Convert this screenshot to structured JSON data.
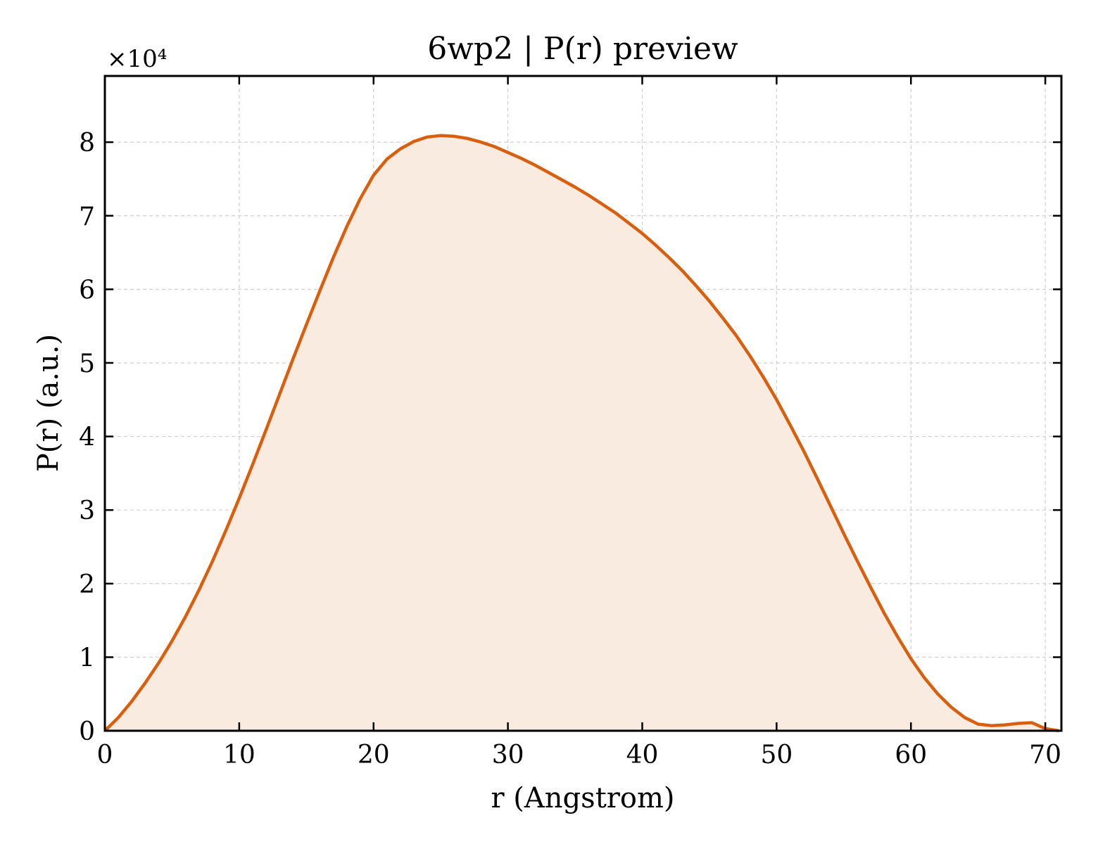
{
  "chart_data": {
    "type": "area",
    "title": "6wp2 | P(r) preview",
    "xlabel": "r (Angstrom)",
    "ylabel": "P(r) (a.u.)",
    "y_multiplier_label": "×10⁴",
    "xlim": [
      0,
      71.2
    ],
    "ylim": [
      0,
      8.9
    ],
    "xticks": [
      0,
      10,
      20,
      30,
      40,
      50,
      60,
      70
    ],
    "yticks": [
      0,
      1,
      2,
      3,
      4,
      5,
      6,
      7,
      8
    ],
    "grid": true,
    "line_color": "#d95f0e",
    "fill_color": "#f9ebe0",
    "series": [
      {
        "x": [
          0,
          1,
          2,
          3,
          4,
          5,
          6,
          7,
          8,
          9,
          10,
          11,
          12,
          13,
          14,
          15,
          16,
          17,
          18,
          19,
          20,
          21,
          22,
          23,
          24,
          25,
          26,
          27,
          28,
          29,
          30,
          31,
          32,
          33,
          34,
          35,
          36,
          37,
          38,
          39,
          40,
          41,
          42,
          43,
          44,
          45,
          46,
          47,
          48,
          49,
          50,
          51,
          52,
          53,
          54,
          55,
          56,
          57,
          58,
          59,
          60,
          61,
          62,
          63,
          64,
          65,
          66,
          67,
          68,
          69,
          70,
          71
        ],
        "y": [
          0,
          0.18,
          0.4,
          0.65,
          0.92,
          1.22,
          1.55,
          1.91,
          2.3,
          2.72,
          3.16,
          3.62,
          4.09,
          4.57,
          5.05,
          5.52,
          5.98,
          6.43,
          6.85,
          7.23,
          7.55,
          7.77,
          7.91,
          8.01,
          8.07,
          8.09,
          8.08,
          8.05,
          8.0,
          7.94,
          7.86,
          7.78,
          7.69,
          7.59,
          7.49,
          7.39,
          7.28,
          7.16,
          7.04,
          6.9,
          6.76,
          6.6,
          6.43,
          6.25,
          6.05,
          5.84,
          5.61,
          5.37,
          5.1,
          4.81,
          4.5,
          4.16,
          3.81,
          3.44,
          3.06,
          2.68,
          2.31,
          1.95,
          1.6,
          1.28,
          0.98,
          0.72,
          0.5,
          0.32,
          0.18,
          0.09,
          0.07,
          0.08,
          0.1,
          0.11,
          0.03,
          0
        ]
      }
    ]
  }
}
